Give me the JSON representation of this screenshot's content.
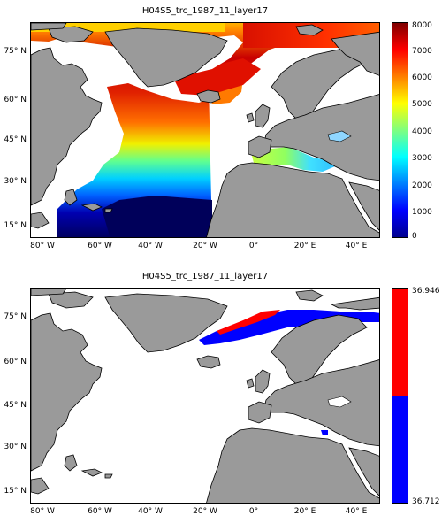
{
  "panels": [
    {
      "title": "H04S5_trc_1987_11_layer17",
      "lat_labels": [
        "75° N",
        "60° N",
        "45° N",
        "30° N",
        "15° N"
      ],
      "lon_labels": [
        "80° W",
        "60° W",
        "40° W",
        "20° W",
        "0°",
        "20° E",
        "40° E"
      ],
      "colorbar": {
        "ticks": [
          "8000",
          "7000",
          "6000",
          "5000",
          "4000",
          "3000",
          "2000",
          "1000",
          "0"
        ],
        "range": [
          0,
          8000
        ],
        "colormap": "jet",
        "colors": [
          "#00008f",
          "#0000ff",
          "#00ffff",
          "#7fff7f",
          "#ffff00",
          "#ff7f00",
          "#ff0000",
          "#7f0000"
        ]
      }
    },
    {
      "title": "H04S5_trc_1987_11_layer17",
      "lat_labels": [
        "75° N",
        "60° N",
        "45° N",
        "30° N",
        "15° N"
      ],
      "lon_labels": [
        "80° W",
        "60° W",
        "40° W",
        "20° W",
        "0°",
        "20° E",
        "40° E"
      ],
      "colorbar": {
        "ticks": [
          "36.946",
          "36.712"
        ],
        "range": [
          36.712,
          36.946
        ],
        "colors": [
          "#ff0000",
          "#0000ff"
        ]
      }
    }
  ],
  "colors": {
    "land": "#9a9a9a",
    "coastline": "#000000",
    "no_data": "#ffffff"
  }
}
